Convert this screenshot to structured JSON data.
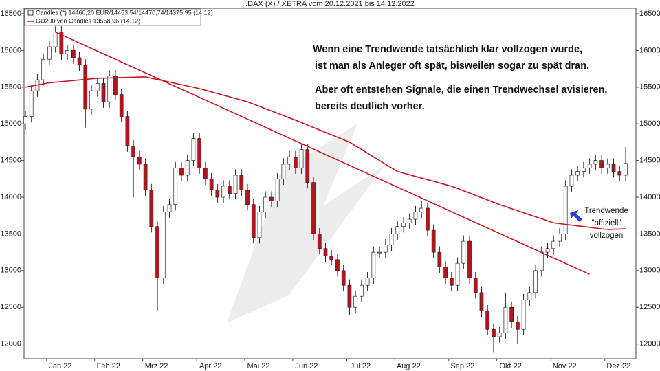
{
  "chart_data": {
    "type": "candlestick",
    "title": ".DAX (X) / XETRA vom 20.12.2021 bis 14.12.2022",
    "legend": [
      "Candles (*) 14460,20 EUR/14453,54/14470,74/14375,95 (14.12)",
      "GD200 von Candles 13558,96 (14.12)"
    ],
    "annotations": [
      "Wenn eine Trendwende tatsächlich klar vollzogen wurde,",
      "ist man als Anleger oft spät, bisweilen sogar zu spät dran.",
      "Aber oft entstehen Signale, die einen Trendwechsel avisieren,",
      "bereits deutlich vorher."
    ],
    "callout": [
      "Trendwende",
      "\"offiziell\"",
      "vollzogen"
    ],
    "categories": [
      null,
      null,
      null,
      null,
      "Jan 22",
      null,
      null,
      null,
      null,
      null,
      null,
      null,
      "Feb 22",
      null,
      null,
      null,
      null,
      null,
      null,
      null,
      "Mrz 22",
      null,
      null,
      null,
      null,
      null,
      null,
      null,
      null,
      "Apr 22",
      null,
      null,
      null,
      null,
      null,
      null,
      null,
      "Mai 22",
      null,
      null,
      null,
      null,
      null,
      null,
      null,
      "Jun 22",
      null,
      null,
      null,
      null,
      null,
      null,
      null,
      null,
      "Jul 22",
      null,
      null,
      null,
      null,
      null,
      null,
      null,
      "Aug 22",
      null,
      null,
      null,
      null,
      null,
      null,
      null,
      null,
      "Sep 22",
      null,
      null,
      null,
      null,
      null,
      null,
      null,
      "Okt 22",
      null,
      null,
      null,
      null,
      null,
      null,
      null,
      null,
      "Nov 22",
      null,
      null,
      null,
      null,
      null,
      null,
      null,
      null,
      "Dez 22",
      null,
      null,
      null
    ],
    "open": [
      15000,
      15100,
      15450,
      15600,
      15880,
      16050,
      16250,
      15950,
      16000,
      15900,
      15800,
      15200,
      15450,
      15550,
      15300,
      15650,
      15400,
      15100,
      14700,
      14550,
      14450,
      14100,
      13600,
      12900,
      13800,
      13900,
      14400,
      14300,
      14500,
      14800,
      14400,
      14250,
      14100,
      14000,
      14150,
      14050,
      14300,
      14100,
      13900,
      13450,
      13800,
      14000,
      13950,
      14250,
      14450,
      14550,
      14400,
      14650,
      14200,
      13500,
      13300,
      13200,
      13150,
      13000,
      12800,
      12500,
      12650,
      12800,
      12900,
      13250,
      13250,
      13350,
      13500,
      13600,
      13650,
      13700,
      13800,
      13850,
      13550,
      13250,
      13050,
      12900,
      12800,
      13100,
      13400,
      12900,
      12700,
      12450,
      12200,
      12100,
      12150,
      12500,
      12300,
      12200,
      12600,
      12700,
      13000,
      13250,
      13300,
      13400,
      13500,
      14150,
      14300,
      14350,
      14400,
      14450,
      14500,
      14400,
      14450,
      14350,
      14300
    ],
    "high": [
      15180,
      15530,
      15680,
      15960,
      16130,
      16330,
      16330,
      16080,
      16080,
      15980,
      15880,
      15530,
      15630,
      15630,
      15730,
      15730,
      15480,
      15180,
      14780,
      14630,
      14530,
      14180,
      13680,
      13880,
      13980,
      14480,
      14480,
      14580,
      14880,
      14880,
      14480,
      14330,
      14180,
      14230,
      14230,
      14380,
      14380,
      14180,
      13980,
      13880,
      14080,
      14080,
      14330,
      14530,
      14630,
      14630,
      14730,
      14730,
      14280,
      13580,
      13380,
      13280,
      13230,
      13080,
      12880,
      12730,
      12880,
      12980,
      13330,
      13330,
      13430,
      13580,
      13680,
      13730,
      13780,
      13880,
      13950,
      13930,
      13630,
      13330,
      13130,
      12980,
      13180,
      13480,
      13480,
      12980,
      12780,
      12530,
      12280,
      12230,
      12700,
      12580,
      12380,
      12680,
      12780,
      13080,
      13330,
      13380,
      13480,
      13580,
      14230,
      14380,
      14430,
      14480,
      14530,
      14580,
      14580,
      14530,
      14530,
      14430,
      14680
    ],
    "low": [
      14920,
      15020,
      15370,
      15520,
      15800,
      15970,
      15870,
      15870,
      15820,
      15720,
      14950,
      15120,
      15370,
      15220,
      15220,
      15320,
      15020,
      14620,
      14000,
      14370,
      14020,
      13520,
      12450,
      12820,
      13720,
      13820,
      14220,
      14220,
      14420,
      14320,
      14170,
      14020,
      13920,
      13920,
      13970,
      13970,
      14020,
      13820,
      13370,
      13370,
      13720,
      13870,
      13870,
      14170,
      14370,
      14320,
      14320,
      14120,
      13420,
      13220,
      13120,
      13070,
      12920,
      12720,
      12400,
      12420,
      12570,
      12720,
      12820,
      13170,
      13170,
      13270,
      13420,
      13520,
      13570,
      13620,
      13720,
      13470,
      13170,
      12970,
      12820,
      12720,
      12720,
      13020,
      12820,
      12620,
      12370,
      12120,
      11880,
      12020,
      12070,
      12220,
      12000,
      12120,
      12520,
      12620,
      12920,
      13170,
      13220,
      13320,
      13420,
      14070,
      14220,
      14270,
      14320,
      14370,
      14320,
      14320,
      14270,
      14220,
      14220
    ],
    "close": [
      15100,
      15450,
      15600,
      15880,
      16050,
      16250,
      15950,
      16000,
      15900,
      15800,
      15200,
      15450,
      15550,
      15300,
      15650,
      15400,
      15100,
      14700,
      14550,
      14450,
      14100,
      13600,
      12900,
      13800,
      13900,
      14400,
      14300,
      14500,
      14800,
      14400,
      14250,
      14100,
      14000,
      14150,
      14050,
      14300,
      14100,
      13900,
      13450,
      13800,
      14000,
      13950,
      14250,
      14450,
      14550,
      14400,
      14650,
      14200,
      13500,
      13300,
      13200,
      13150,
      13000,
      12800,
      12500,
      12650,
      12800,
      12900,
      13250,
      13250,
      13350,
      13500,
      13600,
      13650,
      13700,
      13800,
      13850,
      13550,
      13250,
      13050,
      12900,
      12800,
      13100,
      13400,
      12900,
      12700,
      12450,
      12200,
      12100,
      12150,
      12500,
      12300,
      12200,
      12600,
      12700,
      13000,
      13250,
      13300,
      13400,
      13500,
      14150,
      14300,
      14350,
      14400,
      14450,
      14500,
      14400,
      14450,
      14350,
      14300,
      14460
    ],
    "up_color": "#ffffff",
    "down_color": "#b01818",
    "gd200": {
      "color": "#c8141e",
      "values": [
        15500,
        15515,
        15530,
        15545,
        15560,
        15568,
        15575,
        15583,
        15590,
        15598,
        15605,
        15613,
        15620,
        15623,
        15625,
        15628,
        15630,
        15633,
        15635,
        15638,
        15640,
        15622,
        15604,
        15587,
        15569,
        15551,
        15533,
        15516,
        15498,
        15480,
        15458,
        15435,
        15413,
        15390,
        15368,
        15345,
        15323,
        15300,
        15269,
        15238,
        15206,
        15175,
        15144,
        15113,
        15081,
        15050,
        15017,
        14983,
        14950,
        14917,
        14883,
        14850,
        14817,
        14783,
        14750,
        14700,
        14650,
        14600,
        14550,
        14500,
        14450,
        14400,
        14350,
        14328,
        14306,
        14283,
        14261,
        14239,
        14217,
        14194,
        14172,
        14150,
        14119,
        14088,
        14056,
        14025,
        13994,
        13963,
        13931,
        13900,
        13872,
        13844,
        13817,
        13789,
        13761,
        13733,
        13706,
        13678,
        13650,
        13640,
        13630,
        13620,
        13610,
        13600,
        13590,
        13580,
        13570,
        13560,
        13563,
        13567,
        13570
      ]
    },
    "trendline": {
      "color": "#c8141e",
      "x": [
        5,
        94
      ],
      "values": [
        16250,
        12950
      ]
    },
    "ylim": [
      11800,
      16575
    ],
    "yticks": [
      12000,
      12500,
      13000,
      13500,
      14000,
      14500,
      15000,
      15500,
      16000,
      16500
    ]
  }
}
